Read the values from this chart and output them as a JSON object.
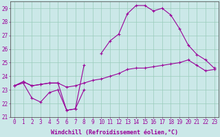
{
  "xlabel": "Windchill (Refroidissement éolien,°C)",
  "bg_color": "#cbe8e8",
  "line_color": "#990099",
  "grid_color": "#99ccbb",
  "xlim": [
    -0.5,
    23.5
  ],
  "ylim": [
    21,
    29.5
  ],
  "yticks": [
    21,
    22,
    23,
    24,
    25,
    26,
    27,
    28,
    29
  ],
  "xticks": [
    0,
    1,
    2,
    3,
    4,
    5,
    6,
    7,
    8,
    9,
    10,
    11,
    12,
    13,
    14,
    15,
    16,
    17,
    18,
    19,
    20,
    21,
    22,
    23
  ],
  "series1_y": [
    23.3,
    23.5,
    22.4,
    22.1,
    22.8,
    23.0,
    21.5,
    21.6,
    23.0,
    null,
    null,
    null,
    null,
    null,
    null,
    null,
    null,
    null,
    null,
    null,
    null,
    null,
    null,
    null
  ],
  "series2_y": [
    23.3,
    23.6,
    23.3,
    23.4,
    23.5,
    23.5,
    23.2,
    23.3,
    23.5,
    23.7,
    23.8,
    24.0,
    24.2,
    24.5,
    24.6,
    24.6,
    24.7,
    24.8,
    24.9,
    25.0,
    25.2,
    24.8,
    24.4,
    24.5
  ],
  "series3_y": [
    23.3,
    23.6,
    23.3,
    23.4,
    23.5,
    23.5,
    21.5,
    21.6,
    24.8,
    null,
    25.7,
    26.6,
    27.1,
    28.6,
    29.2,
    29.2,
    28.8,
    29.0,
    28.5,
    27.5,
    26.3,
    25.6,
    25.2,
    24.6
  ],
  "xlabel_fontsize": 6,
  "tick_fontsize": 5.5,
  "marker_size": 3,
  "line_width": 0.8,
  "figsize": [
    3.2,
    2.0
  ],
  "dpi": 100
}
